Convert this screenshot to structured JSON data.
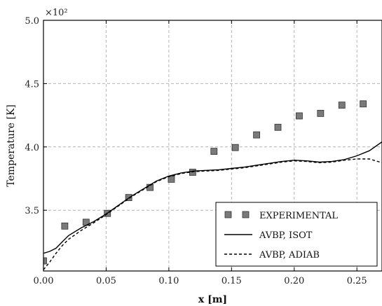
{
  "chart_data": {
    "type": "line",
    "xlabel": "x [m]",
    "ylabel": "Temperature [K]",
    "multiplier": "×10²",
    "xlim": [
      0.0,
      0.27
    ],
    "ylim": [
      3.02,
      5.0
    ],
    "xticks": [
      "0.00",
      "0.05",
      "0.10",
      "0.15",
      "0.20",
      "0.25"
    ],
    "xtick_values": [
      0.0,
      0.05,
      0.1,
      0.15,
      0.2,
      0.25
    ],
    "yticks": [
      "3.5",
      "4.0",
      "4.5",
      "5.0"
    ],
    "ytick_values": [
      3.5,
      4.0,
      4.5,
      5.0
    ],
    "grid": true,
    "legend_position": "lower-right",
    "series": [
      {
        "name": "EXPERIMENTAL",
        "style": "markers",
        "color": "#7a7a7a",
        "x": [
          0.0,
          0.017,
          0.034,
          0.051,
          0.068,
          0.085,
          0.102,
          0.119,
          0.136,
          0.153,
          0.17,
          0.187,
          0.204,
          0.221,
          0.238,
          0.255
        ],
        "y": [
          3.1,
          3.375,
          3.405,
          3.475,
          3.6,
          3.68,
          3.745,
          3.8,
          3.965,
          3.995,
          4.095,
          4.155,
          4.245,
          4.265,
          4.33,
          4.34
        ]
      },
      {
        "name": "AVBP, ISOT",
        "style": "solid",
        "color": "#000000",
        "x": [
          0.0,
          0.005,
          0.01,
          0.015,
          0.02,
          0.03,
          0.04,
          0.05,
          0.06,
          0.07,
          0.08,
          0.09,
          0.1,
          0.11,
          0.12,
          0.13,
          0.14,
          0.15,
          0.16,
          0.17,
          0.18,
          0.19,
          0.2,
          0.21,
          0.22,
          0.23,
          0.24,
          0.25,
          0.26,
          0.27
        ],
        "y": [
          3.16,
          3.175,
          3.2,
          3.25,
          3.3,
          3.36,
          3.41,
          3.47,
          3.54,
          3.61,
          3.67,
          3.73,
          3.77,
          3.795,
          3.81,
          3.815,
          3.82,
          3.83,
          3.84,
          3.855,
          3.87,
          3.885,
          3.895,
          3.89,
          3.88,
          3.885,
          3.9,
          3.93,
          3.97,
          4.04
        ]
      },
      {
        "name": "AVBP, ADIAB",
        "style": "dashed",
        "color": "#000000",
        "x": [
          0.0,
          0.005,
          0.01,
          0.015,
          0.02,
          0.03,
          0.04,
          0.05,
          0.06,
          0.07,
          0.08,
          0.09,
          0.1,
          0.11,
          0.12,
          0.13,
          0.14,
          0.15,
          0.16,
          0.17,
          0.18,
          0.19,
          0.2,
          0.21,
          0.22,
          0.23,
          0.24,
          0.25,
          0.26,
          0.27
        ],
        "y": [
          3.03,
          3.09,
          3.16,
          3.22,
          3.27,
          3.34,
          3.4,
          3.465,
          3.535,
          3.605,
          3.665,
          3.725,
          3.765,
          3.79,
          3.805,
          3.81,
          3.815,
          3.825,
          3.835,
          3.85,
          3.865,
          3.88,
          3.89,
          3.885,
          3.875,
          3.88,
          3.895,
          3.905,
          3.905,
          3.875
        ]
      }
    ]
  }
}
